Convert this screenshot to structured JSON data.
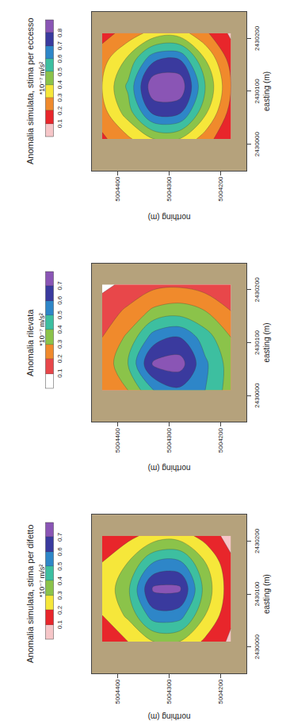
{
  "chart_data": [
    {
      "type": "contour",
      "title": "Anomalia simulata, stima per difetto",
      "x_label": "easting (m)",
      "y_label": "northing (m)",
      "x": [
        2430010,
        2430060,
        2430110,
        2430160,
        2430210
      ],
      "y": [
        5004180,
        5004230,
        5004280,
        5004330,
        5004380,
        5004430
      ],
      "z": [
        [
          0.08,
          0.12,
          0.14,
          0.12,
          0.06
        ],
        [
          0.18,
          0.3,
          0.36,
          0.3,
          0.16
        ],
        [
          0.3,
          0.55,
          0.72,
          0.52,
          0.25
        ],
        [
          0.3,
          0.56,
          0.72,
          0.5,
          0.24
        ],
        [
          0.2,
          0.32,
          0.38,
          0.3,
          0.17
        ],
        [
          0.14,
          0.2,
          0.22,
          0.2,
          0.12
        ]
      ],
      "xlim": [
        2429950,
        2430250
      ],
      "xticks": [
        2430000,
        2430100,
        2430200
      ],
      "ylim": [
        5004150,
        5004450
      ],
      "yticks": [
        5004200,
        5004300,
        5004400
      ],
      "colorbar_title": "*10⁻⁷ m/s²",
      "colorbar_range": [
        0,
        0.8
      ],
      "colorbar_ticks": [
        0.1,
        0.2,
        0.3,
        0.4,
        0.5,
        0.6,
        0.7
      ],
      "colors": [
        "#f6c6c8",
        "#e8262b",
        "#f6e73a",
        "#8bc34a",
        "#3dbfa0",
        "#2e86c8",
        "#3a3a9e",
        "#8a55b5"
      ]
    },
    {
      "type": "contour",
      "title": "Anomalia rilevata",
      "x_label": "easting (m)",
      "y_label": "northing (m)",
      "x": [
        2430010,
        2430060,
        2430110,
        2430160,
        2430210
      ],
      "y": [
        5004180,
        5004230,
        5004280,
        5004330,
        5004380,
        5004430
      ],
      "z": [
        [
          0.35,
          0.35,
          0.3,
          0.2,
          0.12
        ],
        [
          0.5,
          0.52,
          0.45,
          0.3,
          0.15
        ],
        [
          0.58,
          0.75,
          0.6,
          0.35,
          0.18
        ],
        [
          0.5,
          0.72,
          0.55,
          0.32,
          0.17
        ],
        [
          0.3,
          0.4,
          0.32,
          0.22,
          0.12
        ],
        [
          0.2,
          0.22,
          0.2,
          0.14,
          0.08
        ]
      ],
      "xlim": [
        2429950,
        2430250
      ],
      "xticks": [
        2430000,
        2430100,
        2430200
      ],
      "ylim": [
        5004150,
        5004450
      ],
      "yticks": [
        5004200,
        5004300,
        5004400
      ],
      "colorbar_title": "*10⁻⁷ m/s²",
      "colorbar_range": [
        0,
        0.8
      ],
      "colorbar_ticks": [
        0.1,
        0.2,
        0.3,
        0.4,
        0.5,
        0.6,
        0.7
      ],
      "colors": [
        "#ffffff",
        "#e8474a",
        "#f08a2c",
        "#8bc34a",
        "#3dbfa0",
        "#2e86c8",
        "#3a3a9e",
        "#8a55b5"
      ]
    },
    {
      "type": "contour",
      "title": "Anomalia simulata, stima per eccesso",
      "x_label": "easting (m)",
      "y_label": "northing (m)",
      "x": [
        2430010,
        2430060,
        2430110,
        2430160,
        2430210
      ],
      "y": [
        5004180,
        5004230,
        5004280,
        5004330,
        5004380,
        5004430
      ],
      "z": [
        [
          0.1,
          0.16,
          0.2,
          0.16,
          0.08
        ],
        [
          0.25,
          0.42,
          0.5,
          0.4,
          0.22
        ],
        [
          0.4,
          0.72,
          0.88,
          0.7,
          0.35
        ],
        [
          0.4,
          0.73,
          0.88,
          0.68,
          0.34
        ],
        [
          0.28,
          0.45,
          0.52,
          0.42,
          0.24
        ],
        [
          0.18,
          0.26,
          0.3,
          0.26,
          0.16
        ]
      ],
      "xlim": [
        2429950,
        2430250
      ],
      "xticks": [
        2430000,
        2430100,
        2430200
      ],
      "ylim": [
        5004150,
        5004450
      ],
      "yticks": [
        5004200,
        5004300,
        5004400
      ],
      "colorbar_title": "*10⁻⁷ m/s²",
      "colorbar_range": [
        0,
        0.9
      ],
      "colorbar_ticks": [
        0.1,
        0.2,
        0.3,
        0.4,
        0.5,
        0.6,
        0.7,
        0.8
      ],
      "colors": [
        "#f6c6c8",
        "#e8262b",
        "#f08a2c",
        "#f6e73a",
        "#8bc34a",
        "#3dbfa0",
        "#2e86c8",
        "#3a3a9e",
        "#8a55b5"
      ]
    }
  ]
}
